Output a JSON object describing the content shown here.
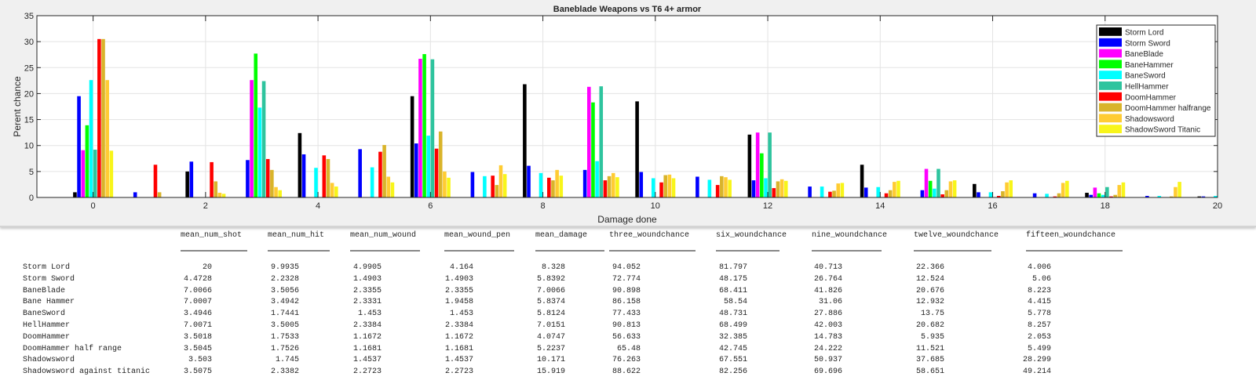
{
  "chart_data": {
    "type": "bar",
    "title": "Baneblade Weapons vs T6 4+ armor",
    "xlabel": "Damage done",
    "ylabel": "Perent chance",
    "xlim": [
      -1,
      20
    ],
    "ylim": [
      0,
      35
    ],
    "xticks": [
      0,
      2,
      4,
      6,
      8,
      10,
      12,
      14,
      16,
      18,
      20
    ],
    "yticks": [
      0,
      5,
      10,
      15,
      20,
      25,
      30,
      35
    ],
    "grid": true,
    "legend_position": "top-right",
    "x": [
      0,
      1,
      2,
      3,
      4,
      5,
      6,
      7,
      8,
      9,
      10,
      11,
      12,
      13,
      14,
      15,
      16,
      17,
      18,
      19,
      20
    ],
    "series": [
      {
        "name": "Storm Lord",
        "color": "#000000",
        "values": [
          1.0,
          0,
          5.0,
          0,
          12.4,
          0,
          19.5,
          0,
          21.8,
          0,
          18.5,
          0,
          12.1,
          0,
          6.3,
          0,
          2.6,
          0,
          0.9,
          0,
          0.2
        ]
      },
      {
        "name": "Storm Sword",
        "color": "#0000ff",
        "values": [
          19.5,
          1.0,
          6.9,
          7.2,
          8.3,
          9.3,
          10.4,
          4.9,
          6.1,
          5.3,
          4.9,
          4.0,
          3.3,
          2.1,
          1.9,
          1.4,
          1.0,
          0.8,
          0.5,
          0.3,
          0.2
        ]
      },
      {
        "name": "BaneBlade",
        "color": "#ff00ff",
        "values": [
          9.1,
          0,
          0,
          22.6,
          0,
          0,
          26.7,
          0,
          0,
          21.3,
          0,
          0,
          12.5,
          0,
          0,
          5.5,
          0,
          0,
          1.9,
          0,
          0
        ]
      },
      {
        "name": "BaneHammer",
        "color": "#00ff00",
        "values": [
          13.9,
          0,
          0,
          27.7,
          0,
          0,
          27.6,
          0,
          0,
          18.3,
          0,
          0,
          8.5,
          0,
          0,
          3.2,
          0,
          0,
          0.8,
          0,
          0
        ]
      },
      {
        "name": "BaneSword",
        "color": "#00ffff",
        "values": [
          22.6,
          0,
          0,
          17.3,
          5.7,
          5.8,
          11.9,
          4.1,
          4.7,
          7.0,
          3.7,
          3.4,
          3.7,
          2.1,
          2.0,
          1.7,
          1.0,
          0.7,
          0.5,
          0.3,
          0.3
        ]
      },
      {
        "name": "HellHammer",
        "color": "#2ec49e",
        "values": [
          9.2,
          0,
          0,
          22.4,
          0,
          0,
          26.6,
          0,
          0,
          21.4,
          0,
          0,
          12.5,
          0,
          0,
          5.5,
          0,
          0,
          2.0,
          0,
          0
        ]
      },
      {
        "name": "DoomHammer",
        "color": "#ff0000",
        "values": [
          30.5,
          6.3,
          6.8,
          7.4,
          8.1,
          8.8,
          9.4,
          4.2,
          3.8,
          3.3,
          2.9,
          2.4,
          1.8,
          1.1,
          0.8,
          0.6,
          0.3,
          0.2,
          0.2,
          0.05,
          0
        ]
      },
      {
        "name": "DoomHammer halfrange",
        "color": "#d9b42a",
        "values": [
          30.5,
          1.0,
          3.1,
          5.3,
          7.4,
          10.1,
          12.7,
          2.4,
          3.3,
          4.1,
          4.3,
          4.1,
          3.1,
          1.3,
          1.4,
          1.4,
          1.2,
          0.8,
          0.5,
          0.2,
          0
        ]
      },
      {
        "name": "Shadowsword",
        "color": "#ffcc33",
        "values": [
          22.6,
          0,
          0.9,
          2.0,
          2.8,
          4.0,
          5.0,
          6.2,
          5.3,
          4.7,
          4.4,
          3.9,
          3.5,
          2.7,
          3.0,
          3.1,
          2.9,
          2.8,
          2.4,
          2.0,
          0
        ]
      },
      {
        "name": "ShadowSword Titanic",
        "color": "#f8f51a",
        "values": [
          9.0,
          0,
          0.7,
          1.4,
          2.1,
          2.9,
          3.8,
          4.5,
          4.2,
          3.9,
          3.7,
          3.4,
          3.2,
          2.8,
          3.2,
          3.3,
          3.3,
          3.2,
          2.9,
          3.0,
          0
        ]
      }
    ]
  },
  "table": {
    "columns": [
      "mean_num_shot",
      "mean_num_hit",
      "mean_num_wound",
      "mean_wound_pen",
      "mean_damage",
      "three_woundchance",
      "six_woundchance",
      "nine_woundchance",
      "twelve_woundchance",
      "fifteen_woundchance"
    ],
    "rows": [
      {
        "label": "Storm Lord",
        "values": [
          "20",
          "9.9935",
          "4.9905",
          "4.164",
          "8.328",
          "94.052",
          "81.797",
          "40.713",
          "22.366",
          "4.006"
        ]
      },
      {
        "label": "Storm Sword",
        "values": [
          "4.4728",
          "2.2328",
          "1.4903",
          "1.4903",
          "5.8392",
          "72.774",
          "48.175",
          "26.764",
          "12.524",
          "5.06"
        ]
      },
      {
        "label": "BaneBlade",
        "values": [
          "7.0066",
          "3.5056",
          "2.3355",
          "2.3355",
          "7.0066",
          "90.898",
          "68.411",
          "41.826",
          "20.676",
          "8.223"
        ]
      },
      {
        "label": "Bane Hammer",
        "values": [
          "7.0007",
          "3.4942",
          "2.3331",
          "1.9458",
          "5.8374",
          "86.158",
          "58.54",
          "31.06",
          "12.932",
          "4.415"
        ]
      },
      {
        "label": "BaneSword",
        "values": [
          "3.4946",
          "1.7441",
          "1.453",
          "1.453",
          "5.8124",
          "77.433",
          "48.731",
          "27.886",
          "13.75",
          "5.778"
        ]
      },
      {
        "label": "HellHammer",
        "values": [
          "7.0071",
          "3.5005",
          "2.3384",
          "2.3384",
          "7.0151",
          "90.813",
          "68.499",
          "42.003",
          "20.682",
          "8.257"
        ]
      },
      {
        "label": "DoomHammer",
        "values": [
          "3.5018",
          "1.7533",
          "1.1672",
          "1.1672",
          "4.0747",
          "56.633",
          "32.385",
          "14.783",
          "5.935",
          "2.053"
        ]
      },
      {
        "label": "DoomHammer half range",
        "values": [
          "3.5045",
          "1.7526",
          "1.1681",
          "1.1681",
          "5.2237",
          "65.48",
          "42.745",
          "24.222",
          "11.521",
          "5.499"
        ]
      },
      {
        "label": "Shadowsword",
        "values": [
          "3.503",
          "1.745",
          "1.4537",
          "1.4537",
          "10.171",
          "76.263",
          "67.551",
          "50.937",
          "37.685",
          "28.299"
        ]
      },
      {
        "label": "Shadowsword against titanic",
        "values": [
          "3.5075",
          "2.3382",
          "2.2723",
          "2.2723",
          "15.919",
          "88.622",
          "82.256",
          "69.696",
          "58.651",
          "49.214"
        ]
      }
    ]
  }
}
